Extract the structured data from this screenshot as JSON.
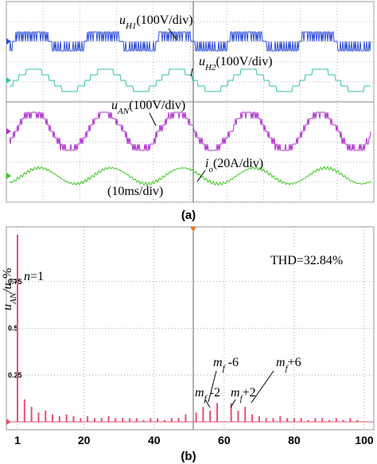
{
  "chart_data": [
    {
      "type": "waveform",
      "panel_label": "(a)",
      "colors": [
        "#2f4fd8",
        "#2cc6a6",
        "#b030d0",
        "#3ec81e"
      ],
      "annotations": [
        {
          "parts": [
            {
              "text": "u",
              "style": "italic"
            },
            {
              "text": "H1",
              "style": "sub"
            },
            {
              "text": "(100V/div)",
              "style": "normal"
            }
          ]
        },
        {
          "parts": [
            {
              "text": "u",
              "style": "italic"
            },
            {
              "text": "H2",
              "style": "sub"
            },
            {
              "text": "(100V/div)",
              "style": "normal"
            }
          ]
        },
        {
          "parts": [
            {
              "text": "u",
              "style": "italic"
            },
            {
              "text": "AN",
              "style": "sub"
            },
            {
              "text": "(100V/div)",
              "style": "normal"
            }
          ]
        },
        {
          "parts": [
            {
              "text": "i",
              "style": "italic"
            },
            {
              "text": "o",
              "style": "sub"
            },
            {
              "text": "(20A/div)",
              "style": "normal"
            }
          ]
        },
        {
          "parts": [
            {
              "text": "(10ms/div)",
              "style": "normal"
            }
          ]
        }
      ]
    },
    {
      "type": "bar",
      "panel_label": "(b)",
      "color": "#e8506e",
      "y_label": {
        "parts": [
          {
            "text": "u",
            "style": "italic"
          },
          {
            "text": "AN",
            "style": "sub"
          },
          {
            "text": "/u",
            "style": "italic"
          },
          {
            "text": "d",
            "style": "sub"
          },
          {
            "text": "%",
            "style": "normal"
          }
        ]
      },
      "x": [
        1,
        3,
        5,
        7,
        9,
        11,
        13,
        15,
        17,
        19,
        21,
        23,
        25,
        27,
        29,
        31,
        33,
        35,
        37,
        39,
        41,
        43,
        45,
        47,
        49,
        52,
        54,
        56,
        58,
        62,
        64,
        66,
        68,
        70,
        72,
        74,
        76,
        78,
        80,
        82,
        84,
        86,
        88,
        90,
        92,
        94,
        96,
        98
      ],
      "values": [
        1,
        0.12,
        0.08,
        0.05,
        0.06,
        0.04,
        0.03,
        0.04,
        0.03,
        0.02,
        0.03,
        0.02,
        0.02,
        0.03,
        0.02,
        0.02,
        0.02,
        0.02,
        0.01,
        0.02,
        0.02,
        0.01,
        0.02,
        0.02,
        0.04,
        0.05,
        0.08,
        0.06,
        0.1,
        0.1,
        0.06,
        0.08,
        0.04,
        0.03,
        0.02,
        0.02,
        0.03,
        0.02,
        0.02,
        0.02,
        0.01,
        0.02,
        0.02,
        0.01,
        0.02,
        0.01,
        0.02,
        0.01
      ],
      "xlim": [
        1,
        100
      ],
      "xticks": [
        1,
        20,
        40,
        60,
        80,
        100
      ],
      "ylim": [
        0,
        1
      ],
      "yticks": [
        0.25,
        0.5,
        0.75
      ],
      "grid": true,
      "annotations": [
        {
          "parts": [
            {
              "text": "n",
              "style": "italic"
            },
            {
              "text": "=1",
              "style": "normal"
            }
          ]
        },
        {
          "parts": [
            {
              "text": "THD=32.84%",
              "style": "normal"
            }
          ]
        },
        {
          "parts": [
            {
              "text": "m",
              "style": "italic"
            },
            {
              "text": "f",
              "style": "sub"
            },
            {
              "text": " -6",
              "style": "normal"
            }
          ]
        },
        {
          "parts": [
            {
              "text": "m",
              "style": "italic"
            },
            {
              "text": "f",
              "style": "sub"
            },
            {
              "text": " -2",
              "style": "normal"
            }
          ]
        },
        {
          "parts": [
            {
              "text": "m",
              "style": "italic"
            },
            {
              "text": "f",
              "style": "sub"
            },
            {
              "text": "+2",
              "style": "normal"
            }
          ]
        },
        {
          "parts": [
            {
              "text": "m",
              "style": "italic"
            },
            {
              "text": "f",
              "style": "sub"
            },
            {
              "text": "+6",
              "style": "normal"
            }
          ]
        }
      ]
    }
  ]
}
